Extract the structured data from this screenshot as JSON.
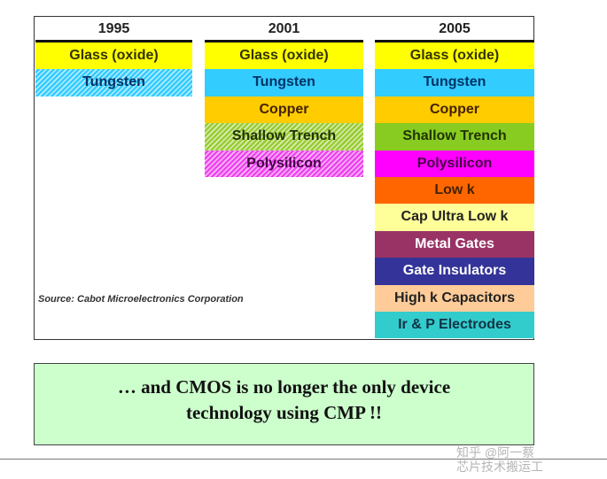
{
  "columns": [
    {
      "year": "1995",
      "items": [
        {
          "label": "Glass (oxide)",
          "bg": "#ffff00",
          "fg": "#333300",
          "hatch": false
        },
        {
          "label": "Tungsten",
          "bg": "#33ccff",
          "fg": "#003366",
          "hatch": true
        }
      ]
    },
    {
      "year": "2001",
      "items": [
        {
          "label": "Glass (oxide)",
          "bg": "#ffff00",
          "fg": "#333300",
          "hatch": false
        },
        {
          "label": "Tungsten",
          "bg": "#33ccff",
          "fg": "#003366",
          "hatch": false
        },
        {
          "label": "Copper",
          "bg": "#ffcc00",
          "fg": "#442200",
          "hatch": false
        },
        {
          "label": "Shallow Trench",
          "bg": "#99cc33",
          "fg": "#223300",
          "hatch": true
        },
        {
          "label": "Polysilicon",
          "bg": "#ee44ee",
          "fg": "#440044",
          "hatch": true
        }
      ]
    },
    {
      "year": "2005",
      "items": [
        {
          "label": "Glass (oxide)",
          "bg": "#ffff00",
          "fg": "#333300",
          "hatch": false
        },
        {
          "label": "Tungsten",
          "bg": "#33ccff",
          "fg": "#003366",
          "hatch": false
        },
        {
          "label": "Copper",
          "bg": "#ffcc00",
          "fg": "#442200",
          "hatch": false
        },
        {
          "label": "Shallow Trench",
          "bg": "#88cc22",
          "fg": "#223300",
          "hatch": false
        },
        {
          "label": "Polysilicon",
          "bg": "#ff00ff",
          "fg": "#440044",
          "hatch": false
        },
        {
          "label": "Low k",
          "bg": "#ff6600",
          "fg": "#442200",
          "hatch": false
        },
        {
          "label": "Cap Ultra Low k",
          "bg": "#ffff99",
          "fg": "#222222",
          "hatch": false
        },
        {
          "label": "Metal Gates",
          "bg": "#993366",
          "fg": "#ffffff",
          "hatch": false
        },
        {
          "label": "Gate Insulators",
          "bg": "#333399",
          "fg": "#ffffff",
          "hatch": false
        },
        {
          "label": "High k Capacitors",
          "bg": "#ffcc99",
          "fg": "#222222",
          "hatch": false
        },
        {
          "label": "Ir & P Electrodes",
          "bg": "#33cccc",
          "fg": "#113344",
          "hatch": false
        }
      ]
    }
  ],
  "source": "Source: Cabot Microelectronics Corporation",
  "note": {
    "line1": "… and CMOS is no longer the only device",
    "line2": "technology using CMP !!"
  },
  "watermark": {
    "line1": "知乎 @阿一蔡",
    "line2": "芯片技术搬运工"
  }
}
